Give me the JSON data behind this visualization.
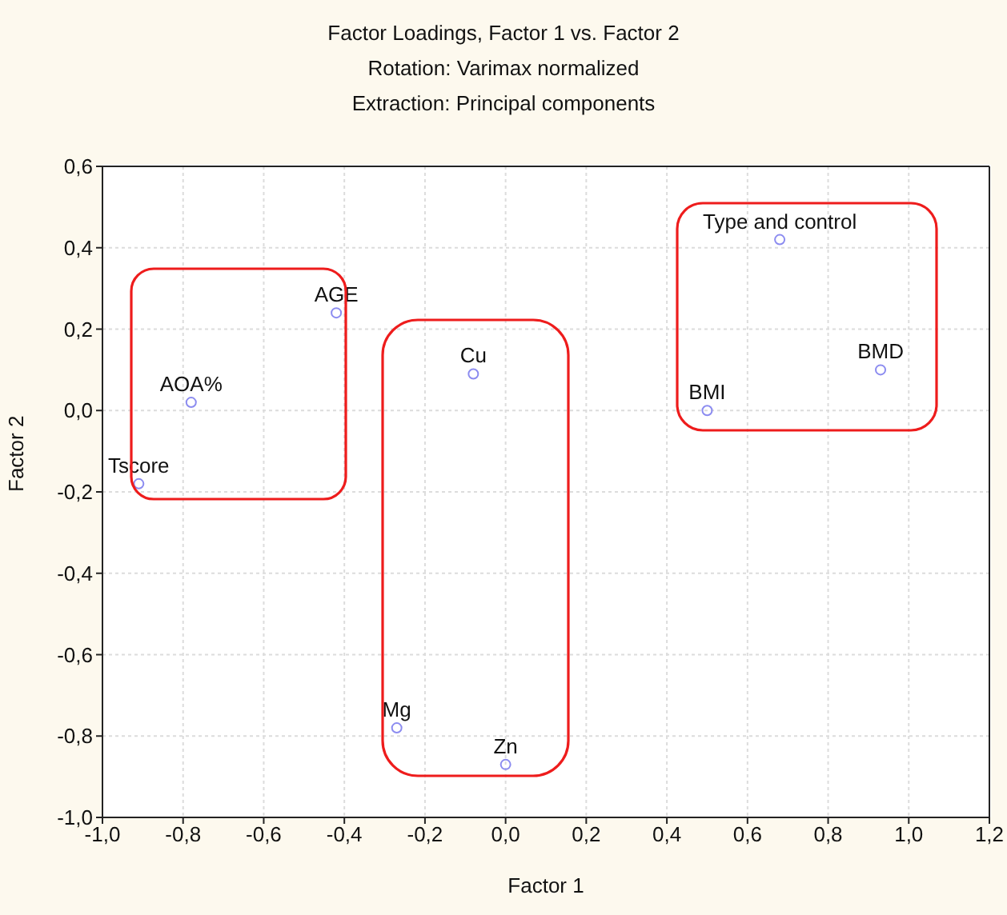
{
  "chart_data": {
    "type": "scatter",
    "title": "Factor Loadings, Factor 1 vs. Factor 2",
    "subtitle": "Rotation: Varimax normalized\nExtraction: Principal components",
    "xlabel": "Factor 1",
    "ylabel": "Factor 2",
    "x": [
      -0.91,
      -0.78,
      -0.42,
      -0.08,
      -0.27,
      0.0,
      0.5,
      0.68,
      0.93
    ],
    "series": [
      {
        "color": "#8c8cf0",
        "values": [
          -0.18,
          0.02,
          0.24,
          0.09,
          -0.78,
          -0.87,
          0.0,
          0.42,
          0.1
        ]
      }
    ],
    "annotations": [
      {
        "text": "Tscore",
        "x": -0.91,
        "y": -0.18
      },
      {
        "text": "AOA%",
        "x": -0.78,
        "y": 0.02
      },
      {
        "text": "AGE",
        "x": -0.42,
        "y": 0.24
      },
      {
        "text": "Cu",
        "x": -0.08,
        "y": 0.09
      },
      {
        "text": "Mg",
        "x": -0.27,
        "y": -0.78
      },
      {
        "text": "Zn",
        "x": 0.0,
        "y": -0.87
      },
      {
        "text": "BMI",
        "x": 0.5,
        "y": 0.0
      },
      {
        "text": "Type and control",
        "x": 0.68,
        "y": 0.42
      },
      {
        "text": "BMD",
        "x": 0.93,
        "y": 0.1
      }
    ],
    "xlim": [
      -1.0,
      1.2
    ],
    "xticks": [
      {
        "value": -1.0,
        "label": "-1,0"
      },
      {
        "value": -0.8,
        "label": "-0,8"
      },
      {
        "value": -0.6,
        "label": "-0,6"
      },
      {
        "value": -0.4,
        "label": "-0,4"
      },
      {
        "value": -0.2,
        "label": "-0,2"
      },
      {
        "value": 0,
        "label": "0,0"
      },
      {
        "value": 0.2,
        "label": "0,2"
      },
      {
        "value": 0.4,
        "label": "0,4"
      },
      {
        "value": 0.6,
        "label": "0,6"
      },
      {
        "value": 0.8,
        "label": "0,8"
      },
      {
        "value": 1.0,
        "label": "1,0"
      },
      {
        "value": 1.2,
        "label": "1,2"
      }
    ],
    "ylim": [
      -1.0,
      0.6
    ],
    "yticks": [
      {
        "value": -1.0,
        "label": "-1,0"
      },
      {
        "value": -0.8,
        "label": "-0,8"
      },
      {
        "value": -0.6,
        "label": "-0,6"
      },
      {
        "value": -0.4,
        "label": "-0,4"
      },
      {
        "value": -0.2,
        "label": "-0,2"
      },
      {
        "value": 0,
        "label": "0,0"
      },
      {
        "value": 0.2,
        "label": "0,2"
      },
      {
        "value": 0.4,
        "label": "0,4"
      },
      {
        "value": 0.6,
        "label": "0,6"
      }
    ],
    "grid": true,
    "marker": "circle"
  }
}
